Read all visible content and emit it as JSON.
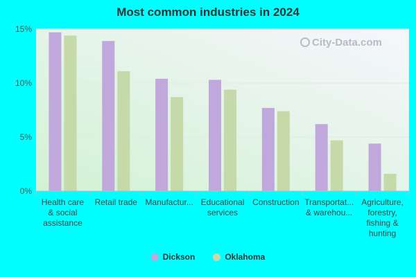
{
  "chart_data": {
    "type": "bar",
    "title": "Most common industries in 2024",
    "categories": [
      [
        "Health care",
        "& social",
        "assistance"
      ],
      [
        "Retail trade"
      ],
      [
        "Manufactur..."
      ],
      [
        "Educational",
        "services"
      ],
      [
        "Construction"
      ],
      [
        "Transportat...",
        "& warehou..."
      ],
      [
        "Agriculture,",
        "forestry,",
        "fishing &",
        "hunting"
      ]
    ],
    "series": [
      {
        "name": "Dickson",
        "color": "#c0a8dc",
        "values": [
          14.7,
          13.9,
          10.4,
          10.3,
          7.7,
          6.2,
          4.4
        ]
      },
      {
        "name": "Oklahoma",
        "color": "#c6d9a8",
        "values": [
          14.4,
          11.1,
          8.7,
          9.4,
          7.4,
          4.7,
          1.6
        ]
      }
    ],
    "ylim": [
      0,
      15
    ],
    "yticks": [
      0,
      5,
      10,
      15
    ],
    "ytick_labels": [
      "0%",
      "5%",
      "10%",
      "15%"
    ],
    "grid": true,
    "legend_position": "bottom"
  },
  "watermark": "City-Data.com",
  "colors": {
    "background": "#00ffff",
    "plot_bg_top": "#f4f4fb",
    "plot_bg_bottom": "#d3f2d6"
  }
}
